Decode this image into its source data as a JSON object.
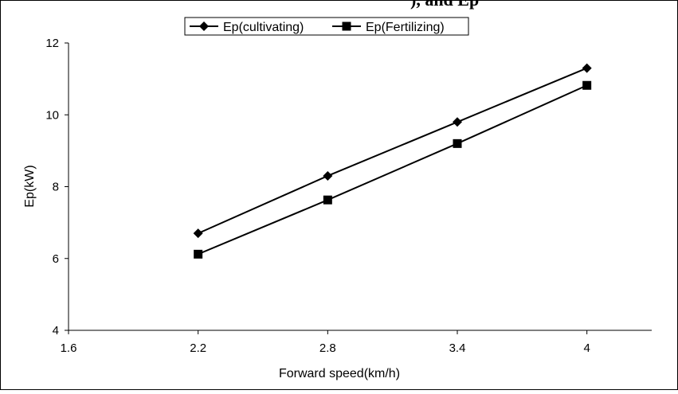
{
  "title_fragment": "), and Ep",
  "chart_data": {
    "type": "line",
    "x": [
      2.2,
      2.8,
      3.4,
      4
    ],
    "series": [
      {
        "name": "Ep(cultivating)",
        "marker": "diamond",
        "values": [
          6.7,
          8.3,
          9.8,
          11.3
        ]
      },
      {
        "name": "Ep(Fertilizing)",
        "marker": "square",
        "values": [
          6.12,
          7.63,
          9.2,
          10.82
        ]
      }
    ],
    "xlabel": "Forward speed(km/h)",
    "ylabel": "Ep(kW)",
    "xlim": [
      1.6,
      4.3
    ],
    "ylim": [
      4,
      12
    ],
    "xticks": [
      "1.6",
      "2.2",
      "2.8",
      "3.4",
      "4"
    ],
    "yticks": [
      "4",
      "6",
      "8",
      "10",
      "12"
    ],
    "grid": false,
    "legend_position": "top-center",
    "series_color": "#000000"
  }
}
